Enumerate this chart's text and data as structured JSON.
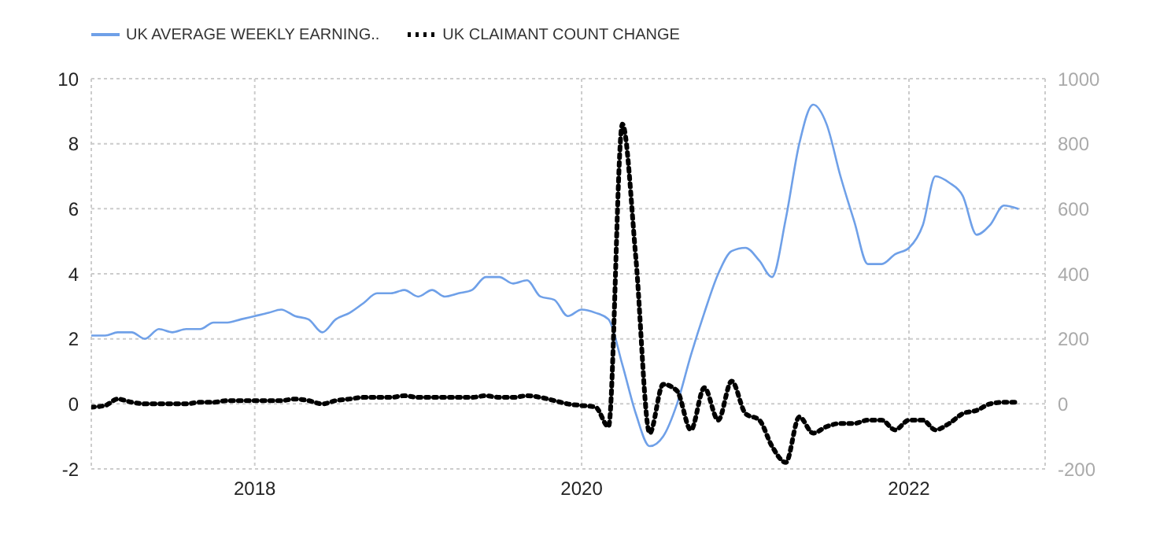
{
  "chart_data": {
    "type": "line",
    "x": [
      "2017-01",
      "2017-02",
      "2017-03",
      "2017-04",
      "2017-05",
      "2017-06",
      "2017-07",
      "2017-08",
      "2017-09",
      "2017-10",
      "2017-11",
      "2017-12",
      "2018-01",
      "2018-02",
      "2018-03",
      "2018-04",
      "2018-05",
      "2018-06",
      "2018-07",
      "2018-08",
      "2018-09",
      "2018-10",
      "2018-11",
      "2018-12",
      "2019-01",
      "2019-02",
      "2019-03",
      "2019-04",
      "2019-05",
      "2019-06",
      "2019-07",
      "2019-08",
      "2019-09",
      "2019-10",
      "2019-11",
      "2019-12",
      "2020-01",
      "2020-02",
      "2020-03",
      "2020-04",
      "2020-05",
      "2020-06",
      "2020-07",
      "2020-08",
      "2020-09",
      "2020-10",
      "2020-11",
      "2020-12",
      "2021-01",
      "2021-02",
      "2021-03",
      "2021-04",
      "2021-05",
      "2021-06",
      "2021-07",
      "2021-08",
      "2021-09",
      "2021-10",
      "2021-11",
      "2021-12",
      "2022-01",
      "2022-02",
      "2022-03",
      "2022-04",
      "2022-05",
      "2022-06",
      "2022-07",
      "2022-08",
      "2022-09"
    ],
    "series": [
      {
        "name": "UK AVERAGE WEEKLY EARNING..",
        "color": "#6fa0e8",
        "line_style": "solid",
        "values": [
          2.1,
          2.1,
          2.2,
          2.2,
          2.0,
          2.3,
          2.2,
          2.3,
          2.3,
          2.5,
          2.5,
          2.6,
          2.7,
          2.8,
          2.9,
          2.7,
          2.6,
          2.2,
          2.6,
          2.8,
          3.1,
          3.4,
          3.4,
          3.5,
          3.3,
          3.5,
          3.3,
          3.4,
          3.5,
          3.9,
          3.9,
          3.7,
          3.8,
          3.3,
          3.2,
          2.7,
          2.9,
          2.8,
          2.6,
          1.2,
          -0.3,
          -1.3,
          -1.0,
          0.0,
          1.5,
          2.8,
          4.0,
          4.7,
          4.8,
          4.4,
          3.9,
          5.7,
          8.0,
          9.2,
          8.6,
          7.0,
          5.6,
          4.3,
          4.3,
          4.6,
          4.8,
          5.5,
          7.0,
          6.8,
          6.4,
          5.2,
          5.5,
          6.1,
          6.0
        ]
      },
      {
        "name": "UK CLAIMANT COUNT CHANGE",
        "color": "#000000",
        "line_style": "dotted",
        "axis": "y2",
        "values": [
          -10,
          -5,
          15,
          5,
          0,
          0,
          0,
          0,
          5,
          5,
          10,
          10,
          10,
          10,
          10,
          15,
          10,
          0,
          10,
          15,
          20,
          20,
          20,
          25,
          20,
          20,
          20,
          20,
          20,
          25,
          20,
          20,
          25,
          20,
          10,
          0,
          -5,
          -10,
          -70,
          860,
          450,
          -90,
          60,
          40,
          -80,
          50,
          -50,
          70,
          -30,
          -50,
          -130,
          -180,
          -40,
          -90,
          -70,
          -60,
          -60,
          -50,
          -50,
          -80,
          -50,
          -50,
          -80,
          -60,
          -30,
          -20,
          0,
          5,
          5
        ]
      }
    ],
    "xlim": [
      "2017-01",
      "2022-11"
    ],
    "xticks": [
      "2018",
      "2020",
      "2022"
    ],
    "ylim": [
      -2,
      10
    ],
    "yticks": [
      -2,
      0,
      2,
      4,
      6,
      8,
      10
    ],
    "y2lim": [
      -200,
      1000
    ],
    "y2ticks": [
      -200,
      0,
      200,
      400,
      600,
      800,
      1000
    ],
    "grid": true,
    "legend": "top left",
    "marker": "none"
  }
}
